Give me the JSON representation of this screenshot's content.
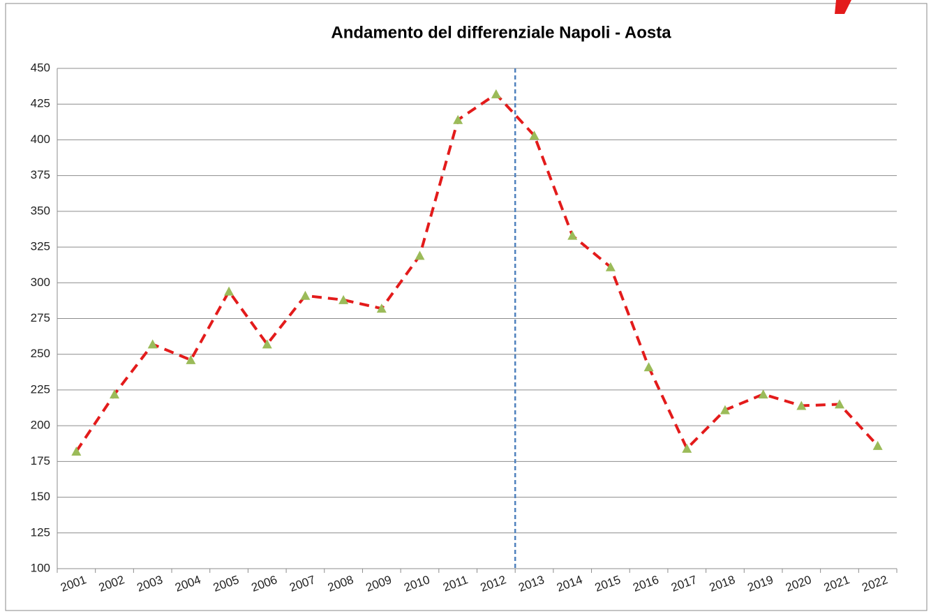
{
  "chart_data": {
    "type": "line",
    "title": "Andamento del differenziale Napoli - Aosta",
    "categories": [
      "2001",
      "2002",
      "2003",
      "2004",
      "2005",
      "2006",
      "2007",
      "2008",
      "2009",
      "2010",
      "2011",
      "2012",
      "2013",
      "2014",
      "2015",
      "2016",
      "2017",
      "2018",
      "2019",
      "2020",
      "2021",
      "2022"
    ],
    "values": [
      182,
      222,
      257,
      246,
      294,
      257,
      291,
      288,
      282,
      319,
      414,
      432,
      403,
      333,
      311,
      241,
      184,
      211,
      222,
      214,
      215,
      186
    ],
    "color": "#e31b1b",
    "marker_color": "#9bbb59",
    "ylim": [
      100,
      450
    ],
    "yticks": [
      100,
      125,
      150,
      175,
      200,
      225,
      250,
      275,
      300,
      325,
      350,
      375,
      400,
      425,
      450
    ],
    "grid": true,
    "vline": "2013",
    "vline_color": "#4f81bd"
  }
}
